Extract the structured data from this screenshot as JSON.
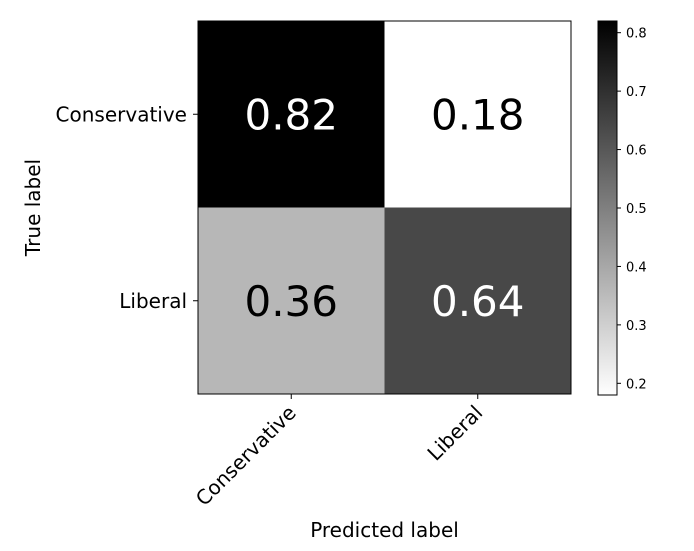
{
  "chart_data": {
    "type": "heatmap",
    "title": "",
    "xlabel": "Predicted label",
    "ylabel": "True label",
    "x_categories": [
      "Conservative",
      "Liberal"
    ],
    "y_categories": [
      "Conservative",
      "Liberal"
    ],
    "values": [
      [
        0.82,
        0.18
      ],
      [
        0.36,
        0.64
      ]
    ],
    "value_labels": [
      [
        "0.82",
        "0.18"
      ],
      [
        "0.36",
        "0.64"
      ]
    ],
    "colormap": "Greys",
    "colorbar": {
      "range": [
        0.18,
        0.82
      ],
      "ticks": [
        0.2,
        0.3,
        0.4,
        0.5,
        0.6,
        0.7,
        0.8
      ],
      "tick_labels": [
        "0.2",
        "0.3",
        "0.4",
        "0.5",
        "0.6",
        "0.7",
        "0.8"
      ]
    },
    "text_colors": {
      "dark_cell": "#ffffff",
      "light_cell": "#000000"
    }
  }
}
